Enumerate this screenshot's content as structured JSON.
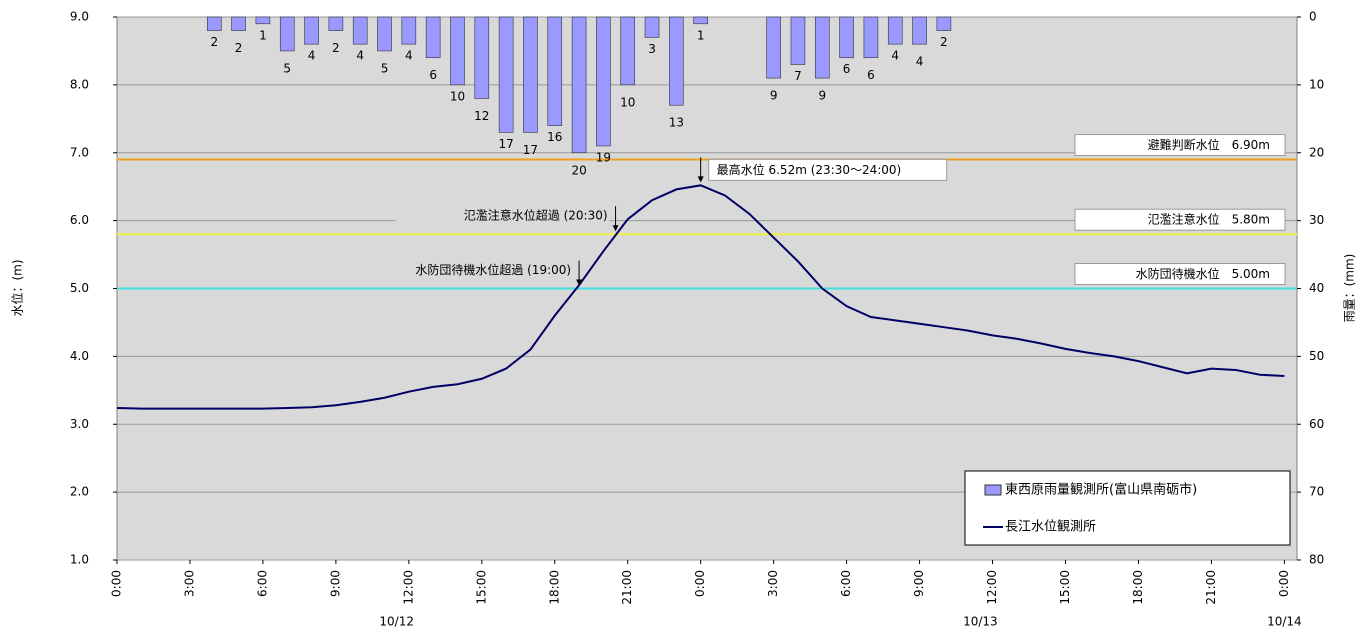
{
  "chart_data": {
    "type": "bar_line",
    "y_label": "水位：(m)",
    "y2_label": "雨量：(mm)",
    "categories": [
      "0:00",
      null,
      null,
      "3:00",
      null,
      null,
      "6:00",
      null,
      null,
      "9:00",
      null,
      null,
      "12:00",
      null,
      null,
      "15:00",
      null,
      null,
      "18:00",
      null,
      null,
      "21:00",
      null,
      null,
      "0:00",
      null,
      null,
      "3:00",
      null,
      null,
      "6:00",
      null,
      null,
      "9:00",
      null,
      null,
      "12:00",
      null,
      null,
      "15:00",
      null,
      null,
      "18:00",
      null,
      null,
      "21:00",
      null,
      null,
      "0:00"
    ],
    "dates": [
      "10/12",
      "10/13",
      "10/14"
    ],
    "ylim": [
      1,
      9
    ],
    "yticks": [
      {
        "value": 1,
        "label": "1.0"
      },
      {
        "value": 2,
        "label": "2.0"
      },
      {
        "value": 3,
        "label": "3.0"
      },
      {
        "value": 4,
        "label": "4.0"
      },
      {
        "value": 5,
        "label": "5.0"
      },
      {
        "value": 6,
        "label": "6.0"
      },
      {
        "value": 7,
        "label": "7.0"
      },
      {
        "value": 8,
        "label": "8.0"
      },
      {
        "value": 9,
        "label": "9.0"
      }
    ],
    "y2lim": [
      0,
      80
    ],
    "y2ticks": [
      0,
      10,
      20,
      30,
      40,
      50,
      60,
      70,
      80
    ],
    "y2_inverted": true,
    "grid": true,
    "legend": "lower right",
    "series": [
      {
        "name": "東西原雨量観測所(富山県南砺市)",
        "type": "bar",
        "axis": "y2",
        "color": "#9999ff",
        "values": [
          null,
          null,
          null,
          null,
          2,
          2,
          1,
          5,
          4,
          2,
          4,
          5,
          4,
          6,
          10,
          12,
          17,
          17,
          16,
          20,
          19,
          10,
          3,
          13,
          1,
          0,
          0,
          9,
          7,
          9,
          6,
          6,
          4,
          4,
          2,
          null,
          null,
          null,
          null,
          null,
          null,
          null,
          null,
          null,
          null,
          null,
          null,
          null,
          null
        ]
      },
      {
        "name": "長江水位観測所",
        "type": "line",
        "color": "#000066",
        "values": [
          3.24,
          3.23,
          3.23,
          3.23,
          3.23,
          3.23,
          3.23,
          3.24,
          3.25,
          3.28,
          3.33,
          3.39,
          3.48,
          3.55,
          3.59,
          3.67,
          3.82,
          4.1,
          4.6,
          5.05,
          5.55,
          6.02,
          6.3,
          6.46,
          6.52,
          6.37,
          6.1,
          5.75,
          5.4,
          5.0,
          4.74,
          4.58,
          4.53,
          4.48,
          4.43,
          4.38,
          4.31,
          4.26,
          4.19,
          4.11,
          4.05,
          4.0,
          3.93,
          3.84,
          3.75,
          3.82,
          3.8,
          3.73,
          3.71
        ]
      }
    ],
    "reference_lines": [
      {
        "label": "避難判断水位　6.90m",
        "value": 6.9,
        "color": "#f0a020"
      },
      {
        "label": "氾濫注意水位　5.80m",
        "value": 5.8,
        "color": "#f0f040"
      },
      {
        "label": "水防団待機水位　5.00m",
        "value": 5.0,
        "color": "#40e0e0"
      }
    ],
    "annotations": [
      {
        "text": "最高水位 6.52m (23:30～24:00)",
        "x": 24,
        "y": 6.52
      },
      {
        "text": "氾濫注意水位超過 (20:30)",
        "x": 20.5,
        "y": 5.8
      },
      {
        "text": "水防団待機水位超過 (19:00)",
        "x": 19,
        "y": 5.0
      }
    ]
  }
}
